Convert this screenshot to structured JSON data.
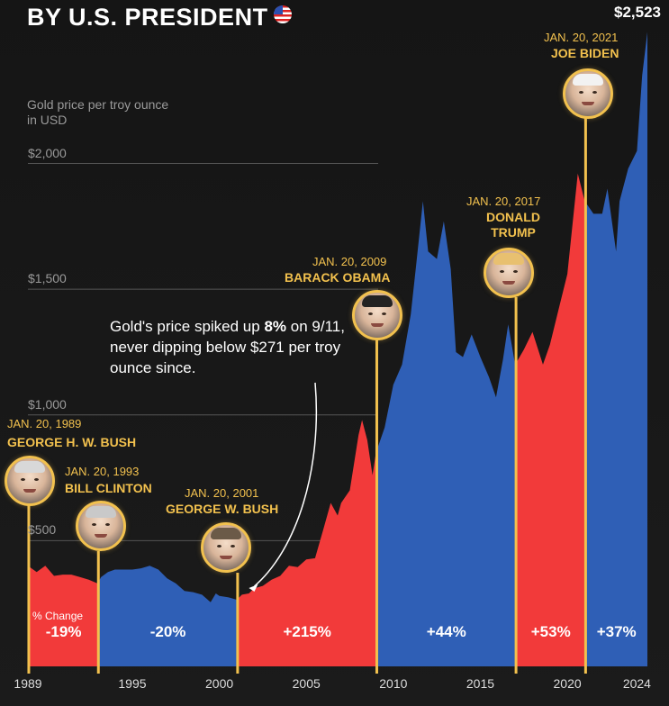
{
  "title": "BY U.S. PRESIDENT",
  "title_flag_icon": "us-flag-icon",
  "colors": {
    "republican": "#f23a3a",
    "democrat": "#2f5fb6",
    "accent": "#f2c14e",
    "background": "#161616",
    "grid": "#555555"
  },
  "chart_data": {
    "type": "area",
    "title": "BY U.S. PRESIDENT",
    "ylabel": "Gold price per troy ounce in USD",
    "xlabel": "",
    "xlim": [
      1989,
      2024.6
    ],
    "ylim": [
      0,
      2600
    ],
    "y_ticks": [
      {
        "value": 500,
        "label": "$500"
      },
      {
        "value": 1000,
        "label": "$1,000"
      },
      {
        "value": 1500,
        "label": "$1,500"
      },
      {
        "value": 2000,
        "label": "$2,000"
      }
    ],
    "x_ticks": [
      {
        "value": 1989,
        "label": "1989"
      },
      {
        "value": 1995,
        "label": "1995"
      },
      {
        "value": 2000,
        "label": "2000"
      },
      {
        "value": 2005,
        "label": "2005"
      },
      {
        "value": 2010,
        "label": "2010"
      },
      {
        "value": 2015,
        "label": "2015"
      },
      {
        "value": 2020,
        "label": "2020"
      },
      {
        "value": 2024,
        "label": "2024"
      }
    ],
    "series": [
      {
        "name": "Gold price",
        "x": [
          1989.0,
          1989.5,
          1990.0,
          1990.5,
          1991.0,
          1991.5,
          1992.0,
          1992.5,
          1993.0,
          1993.2,
          1993.6,
          1994.0,
          1994.5,
          1995.0,
          1995.5,
          1996.0,
          1996.5,
          1997.0,
          1997.5,
          1998.0,
          1998.5,
          1999.0,
          1999.5,
          1999.8,
          2000.0,
          2000.5,
          2001.0,
          2001.3,
          2001.7,
          2002.0,
          2002.5,
          2003.0,
          2003.5,
          2004.0,
          2004.5,
          2005.0,
          2005.5,
          2006.0,
          2006.4,
          2006.8,
          2007.0,
          2007.5,
          2008.0,
          2008.2,
          2008.5,
          2008.8,
          2009.0,
          2009.5,
          2010.0,
          2010.5,
          2011.0,
          2011.3,
          2011.7,
          2012.0,
          2012.5,
          2012.9,
          2013.3,
          2013.6,
          2014.0,
          2014.5,
          2015.0,
          2015.5,
          2015.9,
          2016.3,
          2016.6,
          2017.0,
          2017.5,
          2018.0,
          2018.6,
          2019.0,
          2019.5,
          2020.0,
          2020.6,
          2021.0,
          2021.5,
          2022.0,
          2022.3,
          2022.8,
          2023.0,
          2023.5,
          2024.0,
          2024.3,
          2024.6
        ],
        "values": [
          400,
          375,
          400,
          360,
          365,
          365,
          355,
          345,
          330,
          355,
          375,
          385,
          385,
          385,
          390,
          400,
          385,
          350,
          330,
          300,
          295,
          285,
          255,
          290,
          280,
          275,
          265,
          285,
          290,
          310,
          320,
          345,
          360,
          400,
          395,
          425,
          430,
          550,
          650,
          600,
          650,
          700,
          920,
          980,
          900,
          760,
          850,
          950,
          1120,
          1200,
          1400,
          1590,
          1850,
          1650,
          1620,
          1770,
          1580,
          1250,
          1230,
          1320,
          1230,
          1150,
          1070,
          1220,
          1360,
          1200,
          1260,
          1330,
          1200,
          1280,
          1420,
          1560,
          1960,
          1850,
          1800,
          1800,
          1900,
          1650,
          1850,
          1980,
          2050,
          2350,
          2523
        ]
      }
    ],
    "presidents": [
      {
        "date": "JAN. 20, 1989",
        "name": "GEORGE H. W. BUSH",
        "start": 1989.05,
        "end": 1993.05,
        "party": "R",
        "change": "-19%",
        "face": "george-hw-bush-portrait"
      },
      {
        "date": "JAN. 20, 1993",
        "name": "BILL CLINTON",
        "start": 1993.05,
        "end": 2001.05,
        "party": "D",
        "change": "-20%",
        "face": "bill-clinton-portrait"
      },
      {
        "date": "JAN. 20, 2001",
        "name": "GEORGE W. BUSH",
        "start": 2001.05,
        "end": 2009.05,
        "party": "R",
        "change": "+215%",
        "face": "george-w-bush-portrait"
      },
      {
        "date": "JAN. 20, 2009",
        "name": "BARACK OBAMA",
        "start": 2009.05,
        "end": 2017.05,
        "party": "D",
        "change": "+44%",
        "face": "barack-obama-portrait"
      },
      {
        "date": "JAN. 20, 2017",
        "name": "DONALD TRUMP",
        "start": 2017.05,
        "end": 2021.05,
        "party": "R",
        "change": "+53%",
        "face": "donald-trump-portrait"
      },
      {
        "date": "JAN. 20, 2021",
        "name": "JOE BIDEN",
        "start": 2021.05,
        "end": 2024.6,
        "party": "D",
        "change": "+37%",
        "face": "joe-biden-portrait"
      }
    ],
    "change_label": "% Change",
    "end_value_label": "$2,523",
    "annotation": {
      "text_before": "Gold's price spiked up ",
      "bold": "8%",
      "text_after": " on 9/11, never dipping below $271 per troy ounce since.",
      "points_to_x": 2001.7
    }
  }
}
